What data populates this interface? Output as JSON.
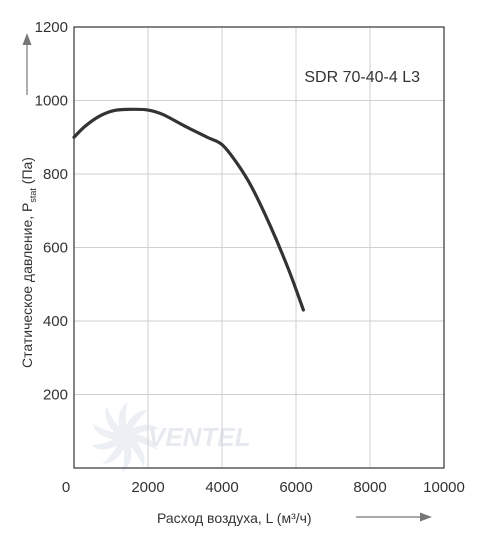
{
  "chart_data": {
    "type": "line",
    "model": "SDR 70-40-4 L3",
    "xlabel": "Расход воздуха, L (м³/ч)",
    "ylabel_prefix": "Статическое давление, P",
    "ylabel_sub": "stat",
    "ylabel_suffix": " (Па)",
    "xlim": [
      0,
      10000
    ],
    "ylim": [
      0,
      1200
    ],
    "xticks": [
      "0",
      "2000",
      "4000",
      "6000",
      "8000",
      "10000"
    ],
    "yticks": [
      "200",
      "400",
      "600",
      "800",
      "1000",
      "1200"
    ],
    "grid": true,
    "watermark": "VENTEL",
    "series": [
      {
        "x": [
          0,
          300,
          700,
          1100,
          1600,
          2000,
          2400,
          3000,
          3600,
          4000,
          4400,
          4800,
          5300,
          5800,
          6200
        ],
        "y": [
          900,
          930,
          958,
          973,
          976,
          974,
          962,
          930,
          900,
          880,
          830,
          765,
          660,
          540,
          430
        ],
        "color": "#333333"
      }
    ]
  }
}
